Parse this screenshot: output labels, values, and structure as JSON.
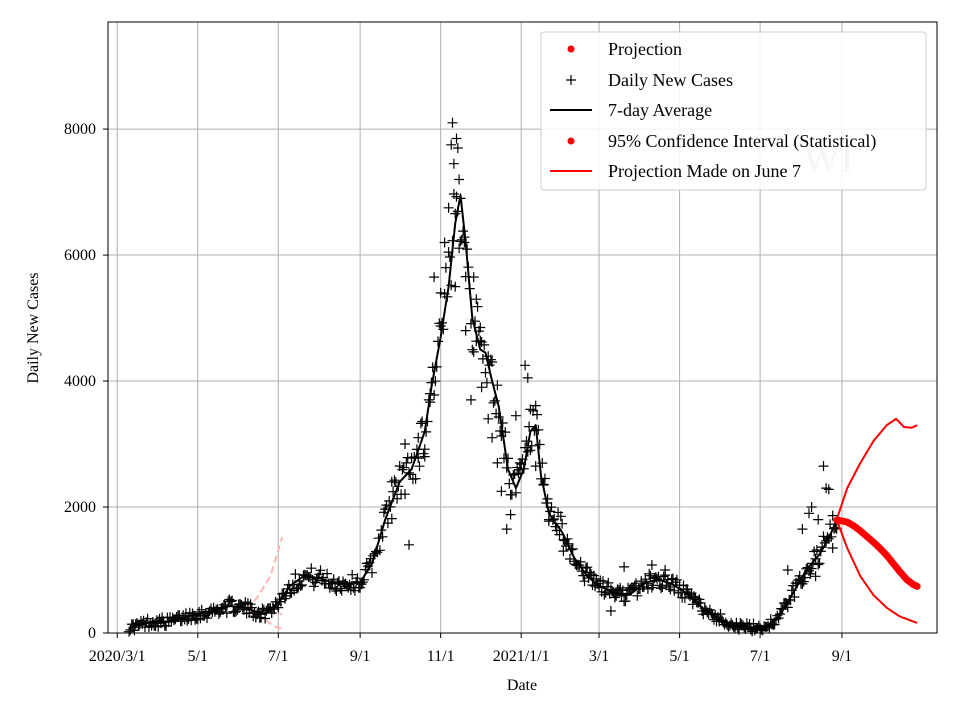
{
  "chart_data": {
    "type": "scatter",
    "xlabel": "Date",
    "ylabel": "Daily New Cases",
    "x_tick_labels": [
      "2020/3/1",
      "5/1",
      "7/1",
      "9/1",
      "11/1",
      "2021/1/1",
      "3/1",
      "5/1",
      "7/1",
      "9/1"
    ],
    "x_tick_dates": [
      "2020-03-01",
      "2020-05-01",
      "2020-07-01",
      "2020-09-01",
      "2020-11-01",
      "2021-01-01",
      "2021-03-01",
      "2021-05-01",
      "2021-07-01",
      "2021-09-01"
    ],
    "xlim": [
      "2020-02-23",
      "2021-11-12"
    ],
    "y_ticks": [
      0,
      2000,
      4000,
      6000,
      8000
    ],
    "ylim": [
      0,
      9700
    ],
    "grid": true,
    "legend_position": "top-right",
    "legend": [
      {
        "label": "Projection",
        "marker": "dot",
        "color": "#ff0000"
      },
      {
        "label": "Daily New Cases",
        "marker": "plus",
        "color": "#000000"
      },
      {
        "label": "7-day Average",
        "marker": "line",
        "color": "#000000"
      },
      {
        "label": "95% Confidence Interval (Statistical)",
        "marker": "dot",
        "color": "#ff0000"
      },
      {
        "label": "Projection Made on June 7",
        "marker": "line",
        "color": "#ff0000"
      }
    ],
    "watermark": "WI",
    "colors": {
      "daily": "#000000",
      "average": "#000000",
      "projection": "#ff0000",
      "old_projection": "#ffb3b3",
      "grid": "#b0b0b0"
    },
    "seven_day_average": [
      {
        "x": "2020-03-10",
        "y": 80
      },
      {
        "x": "2020-03-25",
        "y": 170
      },
      {
        "x": "2020-04-10",
        "y": 180
      },
      {
        "x": "2020-04-25",
        "y": 280
      },
      {
        "x": "2020-05-10",
        "y": 330
      },
      {
        "x": "2020-05-25",
        "y": 430
      },
      {
        "x": "2020-06-05",
        "y": 400
      },
      {
        "x": "2020-06-20",
        "y": 300
      },
      {
        "x": "2020-07-01",
        "y": 480
      },
      {
        "x": "2020-07-10",
        "y": 750
      },
      {
        "x": "2020-07-20",
        "y": 900
      },
      {
        "x": "2020-08-01",
        "y": 870
      },
      {
        "x": "2020-08-15",
        "y": 780
      },
      {
        "x": "2020-09-01",
        "y": 800
      },
      {
        "x": "2020-09-10",
        "y": 1100
      },
      {
        "x": "2020-09-20",
        "y": 1800
      },
      {
        "x": "2020-10-01",
        "y": 2400
      },
      {
        "x": "2020-10-10",
        "y": 2600
      },
      {
        "x": "2020-10-20",
        "y": 3200
      },
      {
        "x": "2020-10-25",
        "y": 3900
      },
      {
        "x": "2020-11-01",
        "y": 4700
      },
      {
        "x": "2020-11-07",
        "y": 5500
      },
      {
        "x": "2020-11-12",
        "y": 6500
      },
      {
        "x": "2020-11-16",
        "y": 6950
      },
      {
        "x": "2020-11-20",
        "y": 6200
      },
      {
        "x": "2020-11-25",
        "y": 5000
      },
      {
        "x": "2020-12-01",
        "y": 4500
      },
      {
        "x": "2020-12-05",
        "y": 4450
      },
      {
        "x": "2020-12-10",
        "y": 4000
      },
      {
        "x": "2020-12-15",
        "y": 3600
      },
      {
        "x": "2020-12-22",
        "y": 2600
      },
      {
        "x": "2020-12-28",
        "y": 2300
      },
      {
        "x": "2021-01-03",
        "y": 2600
      },
      {
        "x": "2021-01-08",
        "y": 3200
      },
      {
        "x": "2021-01-12",
        "y": 3300
      },
      {
        "x": "2021-01-16",
        "y": 2500
      },
      {
        "x": "2021-01-22",
        "y": 1900
      },
      {
        "x": "2021-02-01",
        "y": 1600
      },
      {
        "x": "2021-02-10",
        "y": 1200
      },
      {
        "x": "2021-02-20",
        "y": 900
      },
      {
        "x": "2021-03-01",
        "y": 750
      },
      {
        "x": "2021-03-15",
        "y": 620
      },
      {
        "x": "2021-03-25",
        "y": 620
      },
      {
        "x": "2021-04-05",
        "y": 800
      },
      {
        "x": "2021-04-15",
        "y": 850
      },
      {
        "x": "2021-04-25",
        "y": 780
      },
      {
        "x": "2021-05-05",
        "y": 650
      },
      {
        "x": "2021-05-15",
        "y": 450
      },
      {
        "x": "2021-05-25",
        "y": 300
      },
      {
        "x": "2021-06-05",
        "y": 180
      },
      {
        "x": "2021-06-15",
        "y": 100
      },
      {
        "x": "2021-06-25",
        "y": 80
      },
      {
        "x": "2021-07-05",
        "y": 100
      },
      {
        "x": "2021-07-15",
        "y": 250
      },
      {
        "x": "2021-07-25",
        "y": 600
      },
      {
        "x": "2021-08-05",
        "y": 1000
      },
      {
        "x": "2021-08-15",
        "y": 1250
      },
      {
        "x": "2021-08-22",
        "y": 1500
      },
      {
        "x": "2021-08-28",
        "y": 1800
      }
    ],
    "daily_outliers": [
      {
        "x": "2020-09-25",
        "y": 2400
      },
      {
        "x": "2020-10-05",
        "y": 3000
      },
      {
        "x": "2020-10-08",
        "y": 1400
      },
      {
        "x": "2020-10-15",
        "y": 3100
      },
      {
        "x": "2020-10-20",
        "y": 2800
      },
      {
        "x": "2020-10-24",
        "y": 3800
      },
      {
        "x": "2020-10-27",
        "y": 5650
      },
      {
        "x": "2020-11-01",
        "y": 5400
      },
      {
        "x": "2020-11-04",
        "y": 6200
      },
      {
        "x": "2020-11-07",
        "y": 6750
      },
      {
        "x": "2020-11-09",
        "y": 7750
      },
      {
        "x": "2020-11-10",
        "y": 8100
      },
      {
        "x": "2020-11-11",
        "y": 7450
      },
      {
        "x": "2020-11-12",
        "y": 5500
      },
      {
        "x": "2020-11-13",
        "y": 7850
      },
      {
        "x": "2020-11-14",
        "y": 7700
      },
      {
        "x": "2020-11-15",
        "y": 7200
      },
      {
        "x": "2020-11-16",
        "y": 6900
      },
      {
        "x": "2020-11-19",
        "y": 6200
      },
      {
        "x": "2020-11-20",
        "y": 4800
      },
      {
        "x": "2020-11-24",
        "y": 3700
      },
      {
        "x": "2020-11-26",
        "y": 5650
      },
      {
        "x": "2020-11-28",
        "y": 5300
      },
      {
        "x": "2020-12-01",
        "y": 4850
      },
      {
        "x": "2020-12-02",
        "y": 3900
      },
      {
        "x": "2020-12-07",
        "y": 3400
      },
      {
        "x": "2020-12-10",
        "y": 3100
      },
      {
        "x": "2020-12-14",
        "y": 2700
      },
      {
        "x": "2020-12-17",
        "y": 2250
      },
      {
        "x": "2020-12-21",
        "y": 1650
      },
      {
        "x": "2020-12-24",
        "y": 1880
      },
      {
        "x": "2020-12-28",
        "y": 3450
      },
      {
        "x": "2020-12-31",
        "y": 2700
      },
      {
        "x": "2021-01-04",
        "y": 4250
      },
      {
        "x": "2021-01-06",
        "y": 4050
      },
      {
        "x": "2021-01-08",
        "y": 2900
      },
      {
        "x": "2021-01-12",
        "y": 2650
      },
      {
        "x": "2021-01-18",
        "y": 2350
      },
      {
        "x": "2021-01-22",
        "y": 1800
      },
      {
        "x": "2021-02-02",
        "y": 1300
      },
      {
        "x": "2021-03-10",
        "y": 350
      },
      {
        "x": "2021-03-20",
        "y": 1050
      },
      {
        "x": "2021-04-10",
        "y": 1080
      },
      {
        "x": "2021-04-20",
        "y": 1000
      },
      {
        "x": "2021-07-22",
        "y": 1000
      },
      {
        "x": "2021-08-02",
        "y": 1650
      },
      {
        "x": "2021-08-07",
        "y": 1900
      },
      {
        "x": "2021-08-09",
        "y": 2000
      },
      {
        "x": "2021-08-14",
        "y": 1800
      },
      {
        "x": "2021-08-18",
        "y": 2650
      },
      {
        "x": "2021-08-20",
        "y": 2300
      },
      {
        "x": "2021-08-22",
        "y": 2280
      },
      {
        "x": "2021-08-25",
        "y": 1350
      },
      {
        "x": "2021-08-12",
        "y": 900
      }
    ],
    "projection": [
      {
        "x": "2021-08-28",
        "y": 1790
      },
      {
        "x": "2021-09-01",
        "y": 1780
      },
      {
        "x": "2021-09-05",
        "y": 1760
      },
      {
        "x": "2021-09-10",
        "y": 1700
      },
      {
        "x": "2021-09-15",
        "y": 1620
      },
      {
        "x": "2021-09-20",
        "y": 1530
      },
      {
        "x": "2021-09-25",
        "y": 1440
      },
      {
        "x": "2021-09-30",
        "y": 1340
      },
      {
        "x": "2021-10-05",
        "y": 1230
      },
      {
        "x": "2021-10-10",
        "y": 1100
      },
      {
        "x": "2021-10-15",
        "y": 970
      },
      {
        "x": "2021-10-20",
        "y": 850
      },
      {
        "x": "2021-10-25",
        "y": 770
      },
      {
        "x": "2021-10-28",
        "y": 740
      }
    ],
    "ci_upper": [
      {
        "x": "2021-08-28",
        "y": 1800
      },
      {
        "x": "2021-09-05",
        "y": 2300
      },
      {
        "x": "2021-09-15",
        "y": 2700
      },
      {
        "x": "2021-09-25",
        "y": 3050
      },
      {
        "x": "2021-10-05",
        "y": 3300
      },
      {
        "x": "2021-10-12",
        "y": 3400
      },
      {
        "x": "2021-10-18",
        "y": 3270
      },
      {
        "x": "2021-10-24",
        "y": 3260
      },
      {
        "x": "2021-10-28",
        "y": 3300
      }
    ],
    "ci_lower": [
      {
        "x": "2021-08-28",
        "y": 1800
      },
      {
        "x": "2021-09-05",
        "y": 1350
      },
      {
        "x": "2021-09-15",
        "y": 900
      },
      {
        "x": "2021-09-25",
        "y": 600
      },
      {
        "x": "2021-10-05",
        "y": 400
      },
      {
        "x": "2021-10-15",
        "y": 260
      },
      {
        "x": "2021-10-28",
        "y": 160
      }
    ],
    "old_projection_upper": [
      {
        "x": "2020-06-07",
        "y": 380
      },
      {
        "x": "2020-06-15",
        "y": 560
      },
      {
        "x": "2020-06-25",
        "y": 900
      },
      {
        "x": "2020-07-04",
        "y": 1520
      }
    ],
    "old_projection_mid": [
      {
        "x": "2020-06-07",
        "y": 380
      },
      {
        "x": "2020-06-20",
        "y": 340
      },
      {
        "x": "2020-07-04",
        "y": 300
      }
    ],
    "old_projection_lower": [
      {
        "x": "2020-06-07",
        "y": 380
      },
      {
        "x": "2020-06-18",
        "y": 250
      },
      {
        "x": "2020-06-28",
        "y": 110
      },
      {
        "x": "2020-07-04",
        "y": 60
      }
    ]
  }
}
